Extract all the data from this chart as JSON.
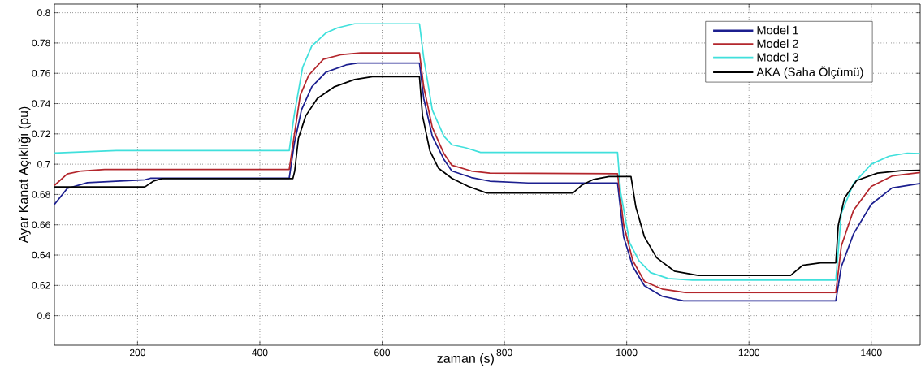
{
  "chart_data": {
    "type": "line",
    "xlabel": "zaman (s)",
    "ylabel": "Ayar Kanat Açıklığı (pu)",
    "xlim": [
      64,
      1480
    ],
    "ylim": [
      0.5805,
      0.8057
    ],
    "xticks": [
      200,
      400,
      600,
      800,
      1000,
      1200,
      1400
    ],
    "yticks": [
      0.6,
      0.62,
      0.64,
      0.66,
      0.68,
      0.7,
      0.72,
      0.74,
      0.76,
      0.78,
      0.8
    ],
    "grid": true,
    "legend": "top right",
    "marker": "none",
    "line_style": "solid",
    "series": [
      {
        "name": "Model 1",
        "color": "#1c1f8f",
        "x": [
          64,
          85,
          118,
          165,
          212,
          221,
          448,
          456,
          468,
          485,
          508,
          541,
          560,
          661,
          668,
          682,
          701,
          714,
          746,
          776,
          839,
          985,
          995,
          1010,
          1029,
          1058,
          1093,
          1342,
          1351,
          1371,
          1400,
          1434,
          1480
        ],
        "values": [
          0.6734,
          0.684,
          0.6878,
          0.6888,
          0.6897,
          0.6907,
          0.6907,
          0.7128,
          0.7358,
          0.7511,
          0.7607,
          0.7655,
          0.7668,
          0.7668,
          0.7434,
          0.7185,
          0.7032,
          0.6955,
          0.6912,
          0.6888,
          0.6876,
          0.6876,
          0.652,
          0.6324,
          0.6198,
          0.6128,
          0.6098,
          0.6098,
          0.6324,
          0.654,
          0.6735,
          0.6843,
          0.6873
        ]
      },
      {
        "name": "Model 2",
        "color": "#b3262c",
        "x": [
          64,
          85,
          108,
          146,
          448,
          454,
          466,
          480,
          504,
          532,
          565,
          661,
          668,
          682,
          701,
          714,
          746,
          776,
          985,
          995,
          1010,
          1029,
          1058,
          1098,
          1342,
          1351,
          1371,
          1400,
          1434,
          1480
        ],
        "values": [
          0.686,
          0.6936,
          0.6955,
          0.6965,
          0.6965,
          0.7128,
          0.7454,
          0.7588,
          0.7693,
          0.7722,
          0.7735,
          0.7735,
          0.751,
          0.7243,
          0.707,
          0.6993,
          0.6955,
          0.6941,
          0.6937,
          0.66,
          0.6363,
          0.6226,
          0.6176,
          0.6151,
          0.6151,
          0.646,
          0.6696,
          0.6853,
          0.6922,
          0.6945
        ]
      },
      {
        "name": "Model 3",
        "color": "#40e0dc",
        "x": [
          64,
          165,
          448,
          456,
          470,
          485,
          508,
          527,
          555,
          661,
          668,
          682,
          701,
          714,
          737,
          761,
          985,
          990,
          1005,
          1020,
          1039,
          1068,
          1107,
          1342,
          1351,
          1371,
          1400,
          1429,
          1459,
          1480
        ],
        "values": [
          0.7074,
          0.709,
          0.709,
          0.732,
          0.764,
          0.778,
          0.7866,
          0.79,
          0.7927,
          0.7927,
          0.77,
          0.7358,
          0.7185,
          0.7128,
          0.7108,
          0.7078,
          0.7078,
          0.6814,
          0.648,
          0.6363,
          0.6284,
          0.6245,
          0.6235,
          0.6235,
          0.6676,
          0.6873,
          0.7,
          0.7053,
          0.7073,
          0.707
        ]
      },
      {
        "name": "AKA (Saha Ölçümü)",
        "color": "#000000",
        "x": [
          64,
          212,
          226,
          240,
          454,
          457,
          463,
          475,
          494,
          522,
          555,
          584,
          661,
          666,
          678,
          692,
          714,
          741,
          771,
          912,
          927,
          946,
          971,
          1007,
          1015,
          1029,
          1049,
          1078,
          1117,
          1268,
          1288,
          1317,
          1342,
          1346,
          1356,
          1376,
          1410,
          1449,
          1480
        ],
        "values": [
          0.685,
          0.685,
          0.6888,
          0.6905,
          0.6905,
          0.6955,
          0.717,
          0.7319,
          0.7434,
          0.7511,
          0.7559,
          0.7578,
          0.7578,
          0.7319,
          0.7089,
          0.6974,
          0.6907,
          0.6853,
          0.681,
          0.681,
          0.6863,
          0.69,
          0.6918,
          0.6918,
          0.6716,
          0.652,
          0.6382,
          0.6294,
          0.6265,
          0.6265,
          0.6333,
          0.6349,
          0.6349,
          0.6598,
          0.6775,
          0.6892,
          0.6941,
          0.6957,
          0.696
        ]
      }
    ]
  }
}
